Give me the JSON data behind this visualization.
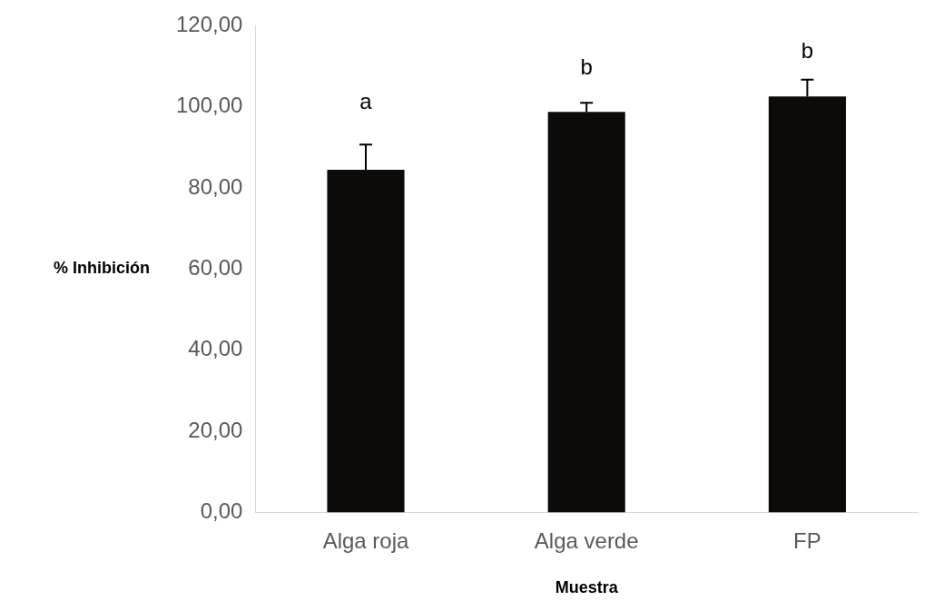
{
  "chart_data": {
    "type": "bar",
    "xlabel": "Muestra",
    "ylabel": "% Inhibición",
    "categories": [
      "Alga roja",
      "Alga verde",
      "FP"
    ],
    "values": [
      84.5,
      98.8,
      102.6
    ],
    "color": "#0c0b09",
    "errors": [
      [
        84.5,
        90.7
      ],
      [
        98.8,
        101
      ],
      [
        102.6,
        106.7
      ]
    ],
    "ylim": [
      0,
      120
    ],
    "yticks": [
      {
        "value": 0,
        "label": "0,00"
      },
      {
        "value": 20,
        "label": "20,00"
      },
      {
        "value": 40,
        "label": "40,00"
      },
      {
        "value": 60,
        "label": "60,00"
      },
      {
        "value": 80,
        "label": "80,00"
      },
      {
        "value": 100,
        "label": "100,00"
      },
      {
        "value": 120,
        "label": "120,00"
      }
    ],
    "annotations": [
      "a",
      "b",
      "b"
    ],
    "grid": false,
    "legend": false
  }
}
